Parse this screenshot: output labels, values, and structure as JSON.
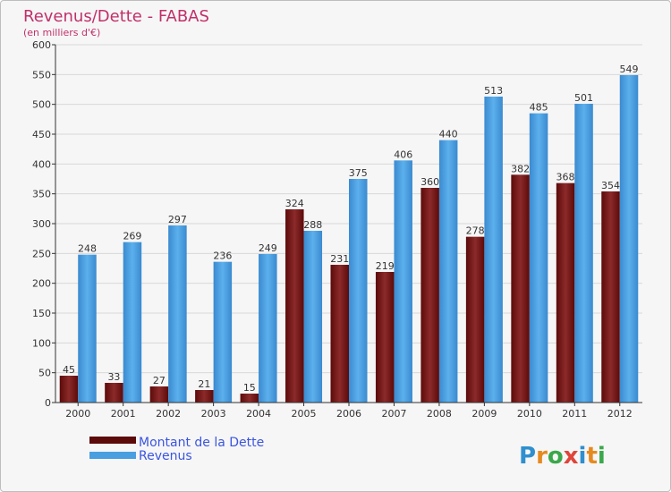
{
  "chart_data": {
    "type": "bar",
    "title": "Revenus/Dette - FABAS",
    "subtitle": "(en milliers d'€)",
    "categories": [
      "2000",
      "2001",
      "2002",
      "2003",
      "2004",
      "2005",
      "2006",
      "2007",
      "2008",
      "2009",
      "2010",
      "2011",
      "2012"
    ],
    "series": [
      {
        "name": "Montant de la Dette",
        "color": "#7a1a1a",
        "values": [
          45,
          33,
          27,
          21,
          15,
          324,
          231,
          219,
          360,
          278,
          382,
          368,
          354
        ]
      },
      {
        "name": "Revenus",
        "color": "#4a9fe0",
        "values": [
          248,
          269,
          297,
          236,
          249,
          288,
          375,
          406,
          440,
          513,
          485,
          501,
          549
        ]
      }
    ],
    "ylim": [
      0,
      600
    ],
    "yticks": [
      0,
      50,
      100,
      150,
      200,
      250,
      300,
      350,
      400,
      450,
      500,
      550,
      600
    ],
    "grid": true,
    "legend_position": "bottom-left"
  },
  "colors": {
    "title": "#c0306a",
    "legend_text": "#3a55e0",
    "axis": "#333333",
    "grid": "#d8d8d8"
  },
  "logo": {
    "text": "Proxiti"
  }
}
